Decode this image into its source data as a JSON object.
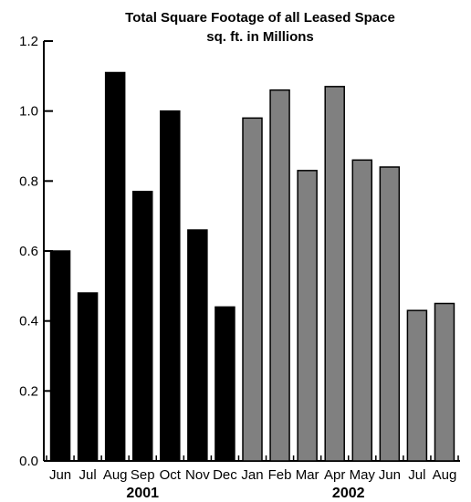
{
  "chart_data": {
    "type": "bar",
    "title": "Total Square Footage of all Leased Space",
    "subtitle": "sq. ft. in Millions",
    "xlabel": "",
    "ylabel": "",
    "ylim": [
      0,
      1.2
    ],
    "yticks": [
      "0.0",
      "0.2",
      "0.4",
      "0.6",
      "0.8",
      "1.0",
      "1.2"
    ],
    "grid": false,
    "legend": "none",
    "categories": [
      "Jun",
      "Jul",
      "Aug",
      "Sep",
      "Oct",
      "Nov",
      "Dec",
      "Jan",
      "Feb",
      "Mar",
      "Apr",
      "May",
      "Jun",
      "Jul",
      "Aug"
    ],
    "values": [
      0.6,
      0.48,
      1.11,
      0.77,
      1.0,
      0.66,
      0.44,
      0.98,
      1.06,
      0.83,
      1.07,
      0.86,
      0.84,
      0.43,
      0.45
    ],
    "groups": [
      {
        "label": "2001",
        "start": 0,
        "end": 6,
        "color": "#000000"
      },
      {
        "label": "2002",
        "start": 7,
        "end": 14,
        "color": "#808080"
      }
    ]
  }
}
